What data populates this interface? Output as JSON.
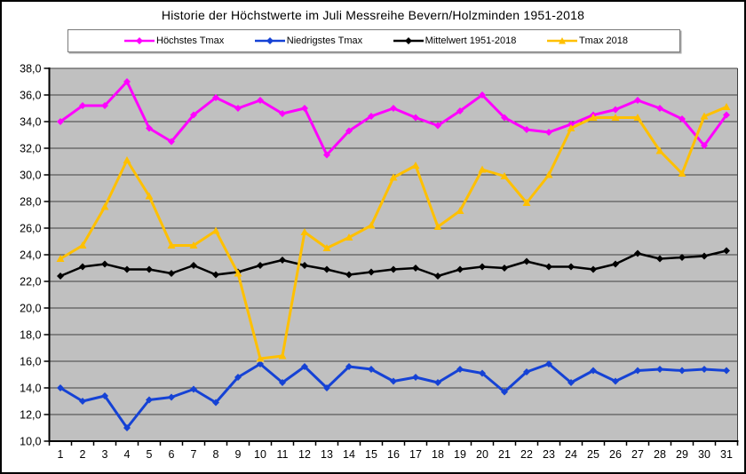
{
  "title": "Historie der Höchstwerte im Juli Messreihe Bevern/Holzminden 1951-2018",
  "colors": {
    "hoechstes": "#FF00FF",
    "niedrigstes": "#1542D5",
    "mittelwert": "#000000",
    "tmax2018": "#FFC000",
    "plot_background": "#C0C0C0",
    "gridline": "#3f3f3f",
    "axis": "#000000"
  },
  "chart_data": {
    "type": "line",
    "title": "Historie der Höchstwerte im Juli Messreihe Bevern/Holzminden 1951-2018",
    "xlabel": "",
    "ylabel": "",
    "x": [
      1,
      2,
      3,
      4,
      5,
      6,
      7,
      8,
      9,
      10,
      11,
      12,
      13,
      14,
      15,
      16,
      17,
      18,
      19,
      20,
      21,
      22,
      23,
      24,
      25,
      26,
      27,
      28,
      29,
      30,
      31
    ],
    "ylim": [
      10,
      38
    ],
    "ytick_step": 2,
    "ytick_labels": [
      "10,0",
      "12,0",
      "14,0",
      "16,0",
      "18,0",
      "20,0",
      "22,0",
      "24,0",
      "26,0",
      "28,0",
      "30,0",
      "32,0",
      "34,0",
      "36,0",
      "38,0"
    ],
    "grid": "horizontal",
    "legend_position": "top",
    "plot_bg": "#C0C0C0",
    "series": [
      {
        "name": "Höchstes Tmax",
        "color": "#FF00FF",
        "marker": "diamond",
        "stroke_width": 3,
        "values": [
          34.0,
          35.2,
          35.2,
          37.0,
          33.5,
          32.5,
          34.5,
          35.8,
          35.0,
          35.6,
          34.6,
          35.0,
          31.5,
          33.3,
          34.4,
          35.0,
          34.3,
          33.7,
          34.8,
          36.0,
          34.3,
          33.4,
          33.2,
          33.8,
          34.5,
          34.9,
          35.6,
          35.0,
          34.2,
          32.2,
          34.5
        ]
      },
      {
        "name": "Niedrigstes Tmax",
        "color": "#1542D5",
        "marker": "diamond",
        "stroke_width": 3,
        "values": [
          14.0,
          13.0,
          13.4,
          11.0,
          13.1,
          13.3,
          13.9,
          12.9,
          14.8,
          15.8,
          14.4,
          15.6,
          14.0,
          15.6,
          15.4,
          14.5,
          14.8,
          14.4,
          15.4,
          15.1,
          13.7,
          15.2,
          15.8,
          14.4,
          15.3,
          14.5,
          15.3,
          15.4,
          15.3,
          15.4,
          15.3
        ]
      },
      {
        "name": "Mittelwert 1951-2018",
        "color": "#000000",
        "marker": "diamond",
        "stroke_width": 2.5,
        "values": [
          22.4,
          23.1,
          23.3,
          22.9,
          22.9,
          22.6,
          23.2,
          22.5,
          22.7,
          23.2,
          23.6,
          23.2,
          22.9,
          22.5,
          22.7,
          22.9,
          23.0,
          22.4,
          22.9,
          23.1,
          23.0,
          23.5,
          23.1,
          23.1,
          22.9,
          23.3,
          24.1,
          23.7,
          23.8,
          23.9,
          24.3
        ]
      },
      {
        "name": "Tmax 2018",
        "color": "#FFC000",
        "marker": "triangle",
        "stroke_width": 3,
        "values": [
          23.7,
          24.7,
          27.6,
          31.1,
          28.4,
          24.7,
          24.7,
          25.8,
          22.6,
          16.2,
          16.4,
          25.7,
          24.5,
          25.3,
          26.2,
          29.8,
          30.7,
          26.1,
          27.3,
          30.4,
          29.9,
          27.9,
          30.0,
          33.5,
          34.3,
          34.3,
          34.3,
          31.8,
          30.1,
          34.4,
          35.1
        ]
      }
    ]
  }
}
